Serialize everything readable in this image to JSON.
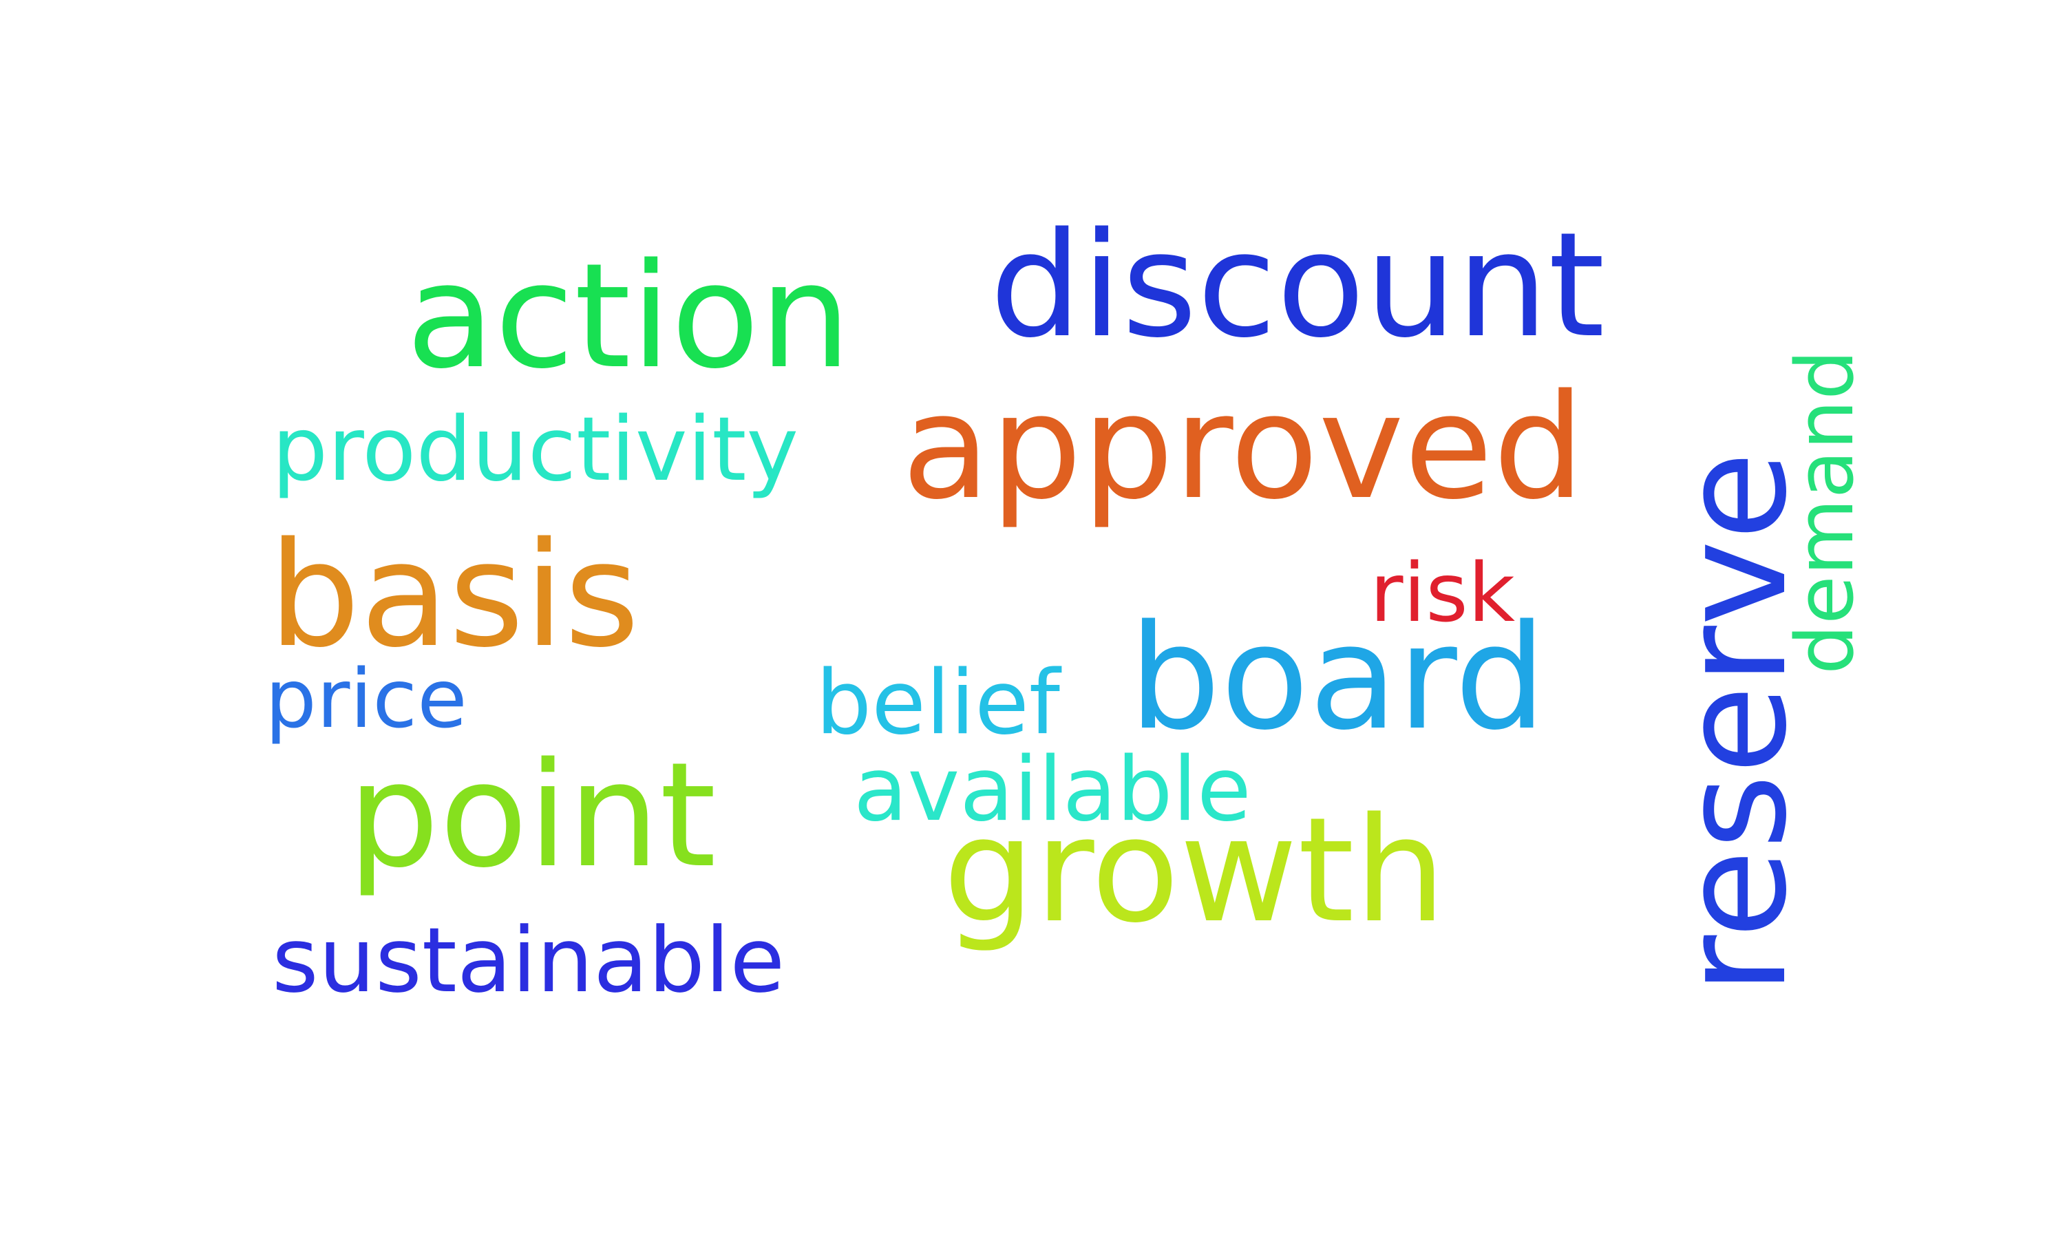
{
  "words": [
    {
      "id": "discount",
      "text": "discount",
      "color": "#1f35d9"
    },
    {
      "id": "action",
      "text": "action",
      "color": "#18e052"
    },
    {
      "id": "approved",
      "text": "approved",
      "color": "#e06020"
    },
    {
      "id": "productivity",
      "text": "productivity",
      "color": "#27e6c4"
    },
    {
      "id": "basis",
      "text": "basis",
      "color": "#e08c1e"
    },
    {
      "id": "risk",
      "text": "risk",
      "color": "#e0202e"
    },
    {
      "id": "board",
      "text": "board",
      "color": "#1fa6e6"
    },
    {
      "id": "belief",
      "text": "belief",
      "color": "#24c1e6"
    },
    {
      "id": "price",
      "text": "price",
      "color": "#2a72e6"
    },
    {
      "id": "available",
      "text": "available",
      "color": "#2ae6c9"
    },
    {
      "id": "point",
      "text": "point",
      "color": "#86e01e"
    },
    {
      "id": "growth",
      "text": "growth",
      "color": "#bbe61c"
    },
    {
      "id": "sustainable",
      "text": "sustainable",
      "color": "#2b2ee0"
    },
    {
      "id": "reserve",
      "text": "reserve",
      "color": "#2240e0",
      "orientation": "vertical"
    },
    {
      "id": "demand",
      "text": "demand",
      "color": "#26e07a",
      "orientation": "vertical"
    }
  ]
}
